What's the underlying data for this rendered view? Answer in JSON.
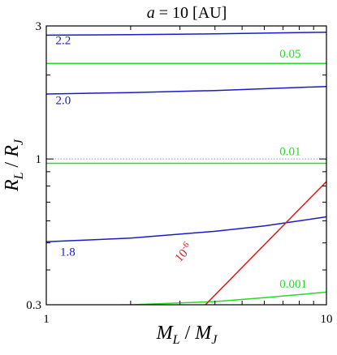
{
  "chart_data": {
    "type": "line",
    "title": "a = 10 [AU]",
    "title_parts": {
      "var": "a",
      "rest": " = 10 [AU]"
    },
    "xlabel": "M_L / M_J",
    "xlabel_parts": {
      "a": "M",
      "a_sub": "L",
      "sep": " / ",
      "b": "M",
      "b_sub": "J"
    },
    "ylabel": "R_L / R_J",
    "ylabel_parts": {
      "a": "R",
      "a_sub": "L",
      "sep": " / ",
      "b": "R",
      "b_sub": "J"
    },
    "x_scale": "log",
    "y_scale": "log",
    "xlim": [
      1,
      10
    ],
    "ylim": [
      0.3,
      3
    ],
    "x_ticks": [
      {
        "value": 1,
        "label": "1"
      },
      {
        "value": 10,
        "label": "10"
      }
    ],
    "y_ticks": [
      {
        "value": 0.3,
        "label": "0.3"
      },
      {
        "value": 1,
        "label": "1"
      },
      {
        "value": 3,
        "label": "3"
      }
    ],
    "reference_lines": [
      {
        "y": 1,
        "style": "dotted"
      }
    ],
    "colors": {
      "blue": "#1a1acc",
      "green": "#22dd22",
      "red": "#dd1a1a",
      "axis": "#000000",
      "ref": "#999999"
    },
    "series": [
      {
        "label": "2.2",
        "color_key": "blue",
        "x": [
          1,
          2,
          4,
          10
        ],
        "y": [
          2.78,
          2.79,
          2.81,
          2.85
        ]
      },
      {
        "label": "2.0",
        "color_key": "blue",
        "x": [
          1,
          2,
          4,
          10
        ],
        "y": [
          1.71,
          1.73,
          1.76,
          1.82
        ]
      },
      {
        "label": "1.8",
        "color_key": "blue",
        "x": [
          1,
          2,
          4,
          6,
          10
        ],
        "y": [
          0.505,
          0.52,
          0.55,
          0.575,
          0.62
        ]
      },
      {
        "label": "0.05",
        "color_key": "green",
        "x": [
          1,
          10
        ],
        "y": [
          2.2,
          2.2
        ]
      },
      {
        "label": "0.01",
        "color_key": "green",
        "x": [
          1,
          10
        ],
        "y": [
          0.965,
          0.965
        ]
      },
      {
        "label": "0.001",
        "color_key": "green",
        "x": [
          1,
          2,
          4,
          6,
          10
        ],
        "y": [
          0.297,
          0.3,
          0.308,
          0.318,
          0.333
        ]
      },
      {
        "label": "10",
        "label_sup": "-6",
        "color_key": "red",
        "x": [
          3.7,
          10
        ],
        "y": [
          0.3,
          0.83
        ]
      }
    ],
    "series_labels": [
      {
        "series": 0,
        "at_x": 1.08,
        "at_y": 2.58
      },
      {
        "series": 1,
        "at_x": 1.08,
        "at_y": 1.57
      },
      {
        "series": 2,
        "at_x": 1.12,
        "at_y": 0.45
      },
      {
        "series": 3,
        "at_x": 6.8,
        "at_y": 2.31
      },
      {
        "series": 4,
        "at_x": 6.8,
        "at_y": 1.03
      },
      {
        "series": 5,
        "at_x": 6.8,
        "at_y": 0.345
      },
      {
        "series": 6,
        "at_x": 3.0,
        "at_y": 0.425
      }
    ]
  }
}
